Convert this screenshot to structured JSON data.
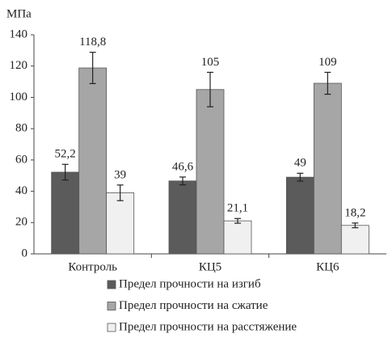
{
  "chart_data": {
    "type": "bar",
    "y_label": "МПа",
    "categories": [
      "Контроль",
      "КЦ5",
      "КЦ6"
    ],
    "series": [
      {
        "name": "Предел прочности на изгиб",
        "color": "#5b5b5b",
        "values": [
          52.2,
          46.6,
          49
        ],
        "value_labels": [
          "52,2",
          "46,6",
          "49"
        ],
        "errors": [
          5,
          2.5,
          2.5
        ]
      },
      {
        "name": "Предел прочности на сжатие",
        "color": "#a6a6a6",
        "values": [
          118.8,
          105,
          109
        ],
        "value_labels": [
          "118,8",
          "105",
          "109"
        ],
        "errors": [
          10,
          11,
          7
        ]
      },
      {
        "name": "Предел прочности на расстяжение",
        "color": "#f0f0f0",
        "values": [
          39,
          21.1,
          18.2
        ],
        "value_labels": [
          "39",
          "21,1",
          "18,2"
        ],
        "errors": [
          5,
          1.5,
          1.5
        ]
      }
    ],
    "ylim": [
      0,
      140
    ],
    "yticks": [
      0,
      20,
      40,
      60,
      80,
      100,
      120,
      140
    ],
    "grid": false
  }
}
